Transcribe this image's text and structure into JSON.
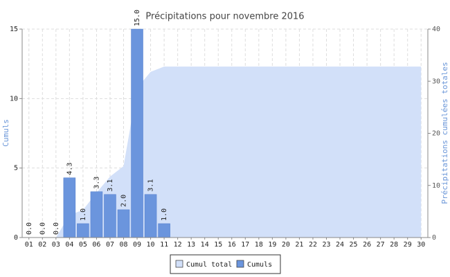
{
  "chart_data": {
    "type": "bar",
    "title": "Précipitations pour novembre 2016",
    "y_label": "Cumuls",
    "y2_label": "Précipitations cumulées totales",
    "categories": [
      "01",
      "02",
      "03",
      "04",
      "05",
      "06",
      "07",
      "08",
      "09",
      "10",
      "11",
      "12",
      "13",
      "14",
      "15",
      "16",
      "17",
      "18",
      "19",
      "20",
      "21",
      "22",
      "23",
      "24",
      "25",
      "26",
      "27",
      "28",
      "29",
      "30"
    ],
    "series": [
      {
        "name": "Cumul total",
        "type": "area",
        "axis": "y2",
        "color": "#d2e0f9",
        "values": [
          0,
          0,
          0,
          4.3,
          5.3,
          8.6,
          11.7,
          13.7,
          28.7,
          31.8,
          32.8,
          32.8,
          32.8,
          32.8,
          32.8,
          32.8,
          32.8,
          32.8,
          32.8,
          32.8,
          32.8,
          32.8,
          32.8,
          32.8,
          32.8,
          32.8,
          32.8,
          32.8,
          32.8,
          32.8
        ]
      },
      {
        "name": "Cumuls",
        "type": "bar",
        "color": "#6b95dd",
        "values": [
          0,
          0,
          0,
          4.3,
          1,
          3.3,
          3.1,
          2,
          15,
          3.1,
          1,
          null,
          null,
          null,
          null,
          null,
          null,
          null,
          null,
          null,
          null,
          null,
          null,
          null,
          null,
          null,
          null,
          null,
          null,
          null
        ],
        "value_labels": [
          "0.0",
          "0.0",
          "0.0",
          "4.3",
          "1.0",
          "3.3",
          "3.1",
          "2.0",
          "15.0",
          "3.1",
          "1.0",
          null,
          null,
          null,
          null,
          null,
          null,
          null,
          null,
          null,
          null,
          null,
          null,
          null,
          null,
          null,
          null,
          null,
          null,
          null
        ]
      }
    ],
    "ylim": [
      0,
      15
    ],
    "yticks": [
      0,
      5,
      10,
      15
    ],
    "y2lim": [
      0,
      40
    ],
    "y2ticks": [
      0,
      10,
      20,
      30,
      40
    ],
    "grid": true,
    "legend": "bottom"
  }
}
